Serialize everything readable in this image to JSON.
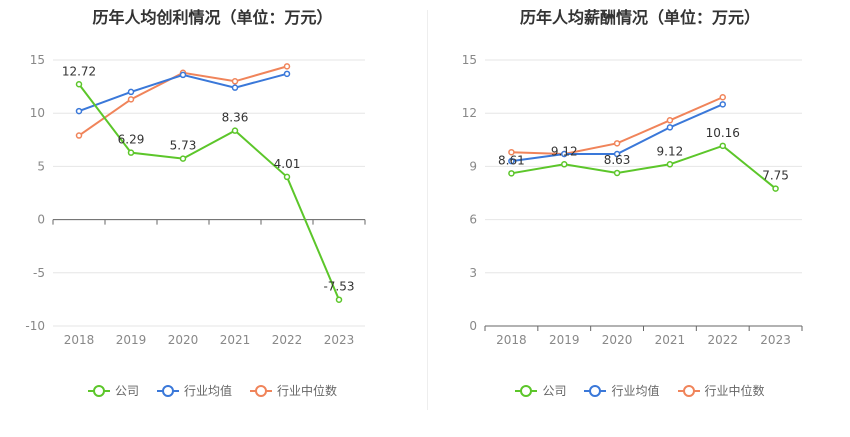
{
  "chart_data": [
    {
      "type": "line",
      "title": "历年人均创利情况（单位：万元）",
      "categories": [
        "2018",
        "2019",
        "2020",
        "2021",
        "2022",
        "2023"
      ],
      "ylim": [
        -10,
        15
      ],
      "yticks": [
        15,
        10,
        5,
        0,
        -5,
        -10
      ],
      "grid": true,
      "legend_position": "bottom",
      "series": [
        {
          "name": "公司",
          "color": "#5cc62a",
          "values": [
            12.72,
            6.29,
            5.73,
            8.36,
            4.01,
            -7.53
          ],
          "labels": [
            "12.72",
            "6.29",
            "5.73",
            "8.36",
            "4.01",
            "-7.53"
          ]
        },
        {
          "name": "行业均值",
          "color": "#3a78d9",
          "values": [
            10.2,
            12.0,
            13.6,
            12.4,
            13.7,
            null
          ]
        },
        {
          "name": "行业中位数",
          "color": "#f0845a",
          "values": [
            7.9,
            11.3,
            13.8,
            13.0,
            14.4,
            null
          ]
        }
      ]
    },
    {
      "type": "line",
      "title": "历年人均薪酬情况（单位：万元）",
      "categories": [
        "2018",
        "2019",
        "2020",
        "2021",
        "2022",
        "2023"
      ],
      "ylim": [
        0,
        15
      ],
      "yticks": [
        15,
        12,
        9,
        6,
        3,
        0
      ],
      "grid": true,
      "legend_position": "bottom",
      "series": [
        {
          "name": "公司",
          "color": "#5cc62a",
          "values": [
            8.61,
            9.12,
            8.63,
            9.12,
            10.16,
            7.75
          ],
          "labels": [
            "8.61",
            "9.12",
            "8.63",
            "9.12",
            "10.16",
            "7.75"
          ]
        },
        {
          "name": "行业均值",
          "color": "#3a78d9",
          "values": [
            9.3,
            9.7,
            9.7,
            11.2,
            12.5,
            null
          ]
        },
        {
          "name": "行业中位数",
          "color": "#f0845a",
          "values": [
            9.8,
            9.7,
            10.3,
            11.6,
            12.9,
            null
          ]
        }
      ]
    }
  ]
}
